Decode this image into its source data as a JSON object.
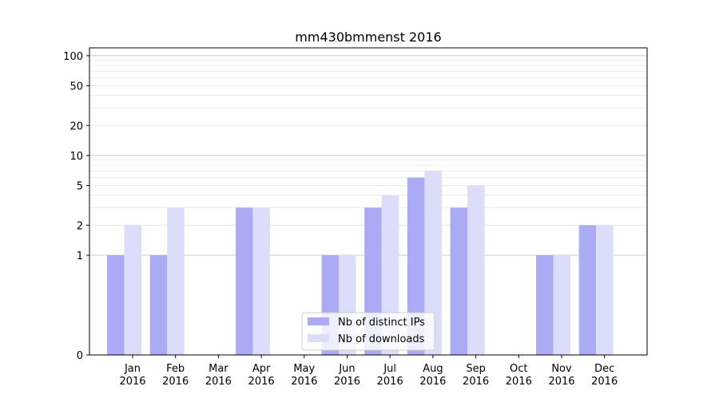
{
  "chart_data": {
    "type": "bar",
    "title": "mm430bmmenst 2016",
    "xlabel": "",
    "ylabel": "",
    "yscale": "symlog",
    "ylim": [
      0,
      120
    ],
    "yticks": [
      0,
      1,
      2,
      5,
      10,
      20,
      50,
      100
    ],
    "categories": [
      "Jan",
      "Feb",
      "Mar",
      "Apr",
      "May",
      "Jun",
      "Jul",
      "Aug",
      "Sep",
      "Oct",
      "Nov",
      "Dec"
    ],
    "category_years": [
      "2016",
      "2016",
      "2016",
      "2016",
      "2016",
      "2016",
      "2016",
      "2016",
      "2016",
      "2016",
      "2016",
      "2016"
    ],
    "series": [
      {
        "name": "Nb of distinct IPs",
        "color": "#aaaaf5",
        "values": [
          1,
          1,
          0,
          3,
          0,
          1,
          3,
          6,
          3,
          0,
          1,
          2
        ]
      },
      {
        "name": "Nb of downloads",
        "color": "#dcdcfb",
        "values": [
          2,
          3,
          0,
          3,
          0,
          1,
          4,
          7,
          5,
          0,
          1,
          2
        ]
      }
    ],
    "grid": true,
    "legend_position": "bottom-center"
  }
}
